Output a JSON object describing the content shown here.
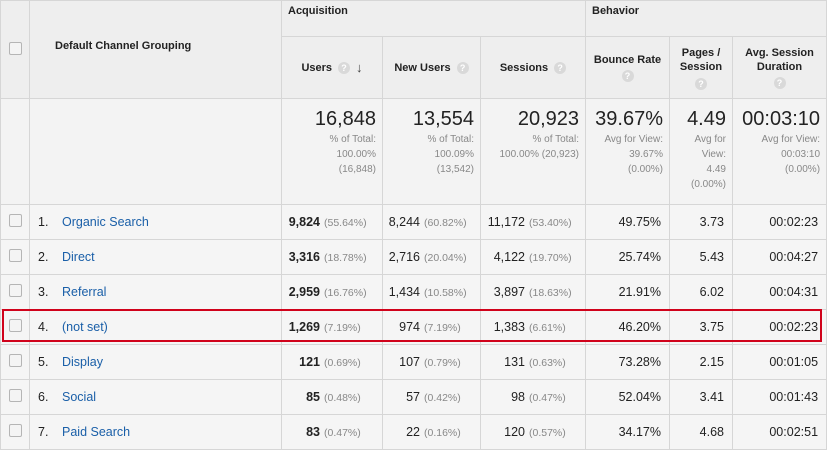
{
  "header": {
    "dimension": "Default Channel Grouping",
    "groups": {
      "acquisition": "Acquisition",
      "behavior": "Behavior"
    },
    "metrics": {
      "users": "Users",
      "new_users": "New Users",
      "sessions": "Sessions",
      "bounce_rate": "Bounce Rate",
      "pages_line1": "Pages /",
      "pages_line2": "Session",
      "avg_line1": "Avg. Session",
      "avg_line2": "Duration"
    },
    "help_glyph": "?",
    "sort_arrow": "↓"
  },
  "totals": {
    "users": {
      "value": "16,848",
      "l1": "% of Total:",
      "l2": "100.00%",
      "l3": "(16,848)"
    },
    "new_users": {
      "value": "13,554",
      "l1": "% of Total:",
      "l2": "100.09%",
      "l3": "(13,542)"
    },
    "sessions": {
      "value": "20,923",
      "l1": "% of Total:",
      "l2": "100.00% (20,923)"
    },
    "bounce_rate": {
      "value": "39.67%",
      "l1": "Avg for View:",
      "l2": "39.67%",
      "l3": "(0.00%)"
    },
    "pages": {
      "value": "4.49",
      "l1": "Avg for",
      "l2": "View:",
      "l3": "4.49",
      "l4": "(0.00%)"
    },
    "duration": {
      "value": "00:03:10",
      "l1": "Avg for View:",
      "l2": "00:03:10",
      "l3": "(0.00%)"
    }
  },
  "rows": [
    {
      "idx": "1.",
      "name": "Organic Search",
      "users": "9,824",
      "users_pct": "(55.64%)",
      "new_users": "8,244",
      "new_users_pct": "(60.82%)",
      "sessions": "11,172",
      "sessions_pct": "(53.40%)",
      "bounce": "49.75%",
      "pages": "3.73",
      "duration": "00:02:23"
    },
    {
      "idx": "2.",
      "name": "Direct",
      "users": "3,316",
      "users_pct": "(18.78%)",
      "new_users": "2,716",
      "new_users_pct": "(20.04%)",
      "sessions": "4,122",
      "sessions_pct": "(19.70%)",
      "bounce": "25.74%",
      "pages": "5.43",
      "duration": "00:04:27"
    },
    {
      "idx": "3.",
      "name": "Referral",
      "users": "2,959",
      "users_pct": "(16.76%)",
      "new_users": "1,434",
      "new_users_pct": "(10.58%)",
      "sessions": "3,897",
      "sessions_pct": "(18.63%)",
      "bounce": "21.91%",
      "pages": "6.02",
      "duration": "00:04:31"
    },
    {
      "idx": "4.",
      "name": "(not set)",
      "users": "1,269",
      "users_pct": "(7.19%)",
      "new_users": "974",
      "new_users_pct": "(7.19%)",
      "sessions": "1,383",
      "sessions_pct": "(6.61%)",
      "bounce": "46.20%",
      "pages": "3.75",
      "duration": "00:02:23"
    },
    {
      "idx": "5.",
      "name": "Display",
      "users": "121",
      "users_pct": "(0.69%)",
      "new_users": "107",
      "new_users_pct": "(0.79%)",
      "sessions": "131",
      "sessions_pct": "(0.63%)",
      "bounce": "73.28%",
      "pages": "2.15",
      "duration": "00:01:05"
    },
    {
      "idx": "6.",
      "name": "Social",
      "users": "85",
      "users_pct": "(0.48%)",
      "new_users": "57",
      "new_users_pct": "(0.42%)",
      "sessions": "98",
      "sessions_pct": "(0.47%)",
      "bounce": "52.04%",
      "pages": "3.41",
      "duration": "00:01:43"
    },
    {
      "idx": "7.",
      "name": "Paid Search",
      "users": "83",
      "users_pct": "(0.47%)",
      "new_users": "22",
      "new_users_pct": "(0.16%)",
      "sessions": "120",
      "sessions_pct": "(0.57%)",
      "bounce": "34.17%",
      "pages": "4.68",
      "duration": "00:02:51"
    }
  ],
  "highlight_color": "#d0021b",
  "link_color": "#1a5fa8"
}
